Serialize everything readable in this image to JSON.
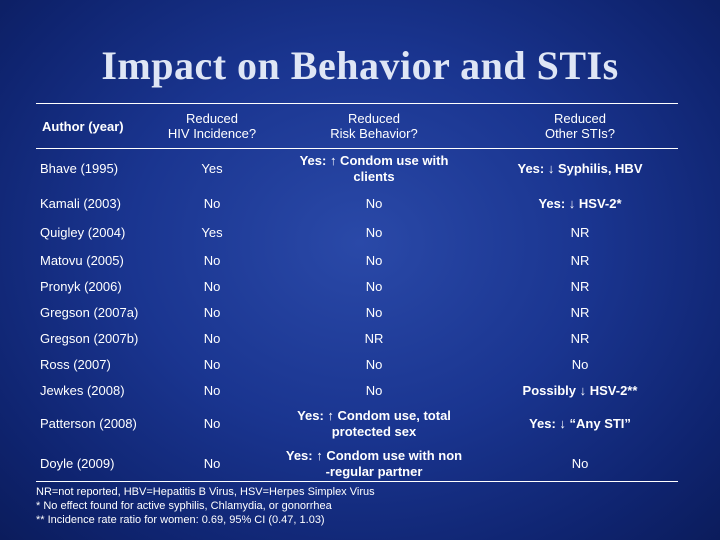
{
  "title": "Impact on Behavior and STIs",
  "headers": {
    "author": "Author (year)",
    "hiv_line1": "Reduced",
    "hiv_line2": "HIV Incidence?",
    "risk_line1": "Reduced",
    "risk_line2": "Risk Behavior?",
    "sti_line1": "Reduced",
    "sti_line2": "Other STIs?"
  },
  "rows": [
    {
      "author": "Bhave (1995)",
      "hiv": "Yes",
      "risk_line1": "Yes: ↑ Condom use  with",
      "risk_line2": "clients",
      "sti": "Yes: ↓ Syphilis, HBV"
    },
    {
      "author": "Kamali (2003)",
      "hiv": "No",
      "risk_line1": "No",
      "risk_line2": "",
      "sti": "Yes: ↓ HSV-2*"
    },
    {
      "author": "Quigley (2004)",
      "hiv": "Yes",
      "risk_line1": "No",
      "risk_line2": "",
      "sti": "NR"
    },
    {
      "author": "Matovu (2005)",
      "hiv": "No",
      "risk_line1": "No",
      "risk_line2": "",
      "sti": "NR"
    },
    {
      "author": "Pronyk (2006)",
      "hiv": "No",
      "risk_line1": "No",
      "risk_line2": "",
      "sti": "NR"
    },
    {
      "author": "Gregson (2007a)",
      "hiv": "No",
      "risk_line1": "No",
      "risk_line2": "",
      "sti": "NR"
    },
    {
      "author": "Gregson (2007b)",
      "hiv": "No",
      "risk_line1": "NR",
      "risk_line2": "",
      "sti": "NR"
    },
    {
      "author": "Ross (2007)",
      "hiv": "No",
      "risk_line1": "No",
      "risk_line2": "",
      "sti": "No"
    },
    {
      "author": "Jewkes (2008)",
      "hiv": "No",
      "risk_line1": "No",
      "risk_line2": "",
      "sti": "Possibly ↓ HSV-2**"
    },
    {
      "author": "Patterson (2008)",
      "hiv": "No",
      "risk_line1": "Yes: ↑ Condom use, total",
      "risk_line2": "protected sex",
      "sti": "Yes: ↓ “Any STI”"
    },
    {
      "author": "Doyle (2009)",
      "hiv": "No",
      "risk_line1": "Yes: ↑ Condom use with non",
      "risk_line2": "-regular partner",
      "sti": "No"
    }
  ],
  "notes": {
    "line1": "NR=not reported, HBV=Hepatitis B Virus, HSV=Herpes Simplex Virus",
    "line2": "* No effect found for active syphilis, Chlamydia, or gonorrhea",
    "line3": "** Incidence rate ratio for women: 0.69, 95% CI (0.47, 1.03)"
  },
  "colors": {
    "background": "#1a3590",
    "text": "#ffffff",
    "title": "#dfe6f5"
  }
}
